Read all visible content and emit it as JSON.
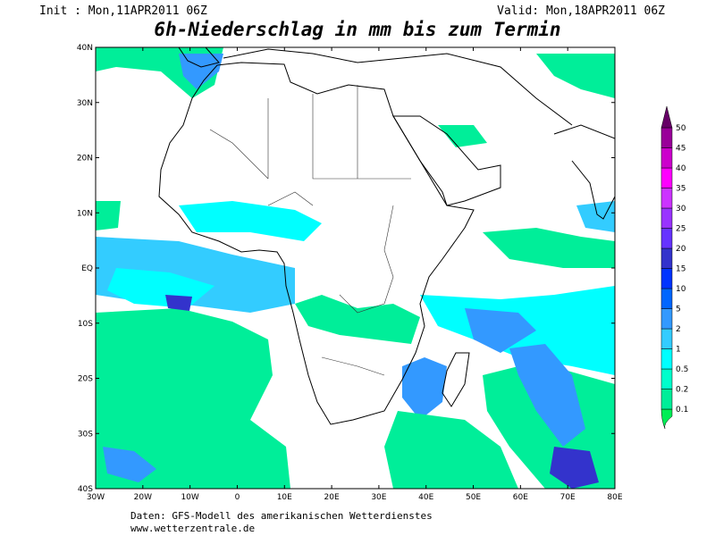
{
  "header": {
    "init": "Init : Mon,11APR2011 06Z",
    "valid": "Valid: Mon,18APR2011 06Z",
    "title": "6h-Niederschlag in mm bis zum Termin"
  },
  "map": {
    "lat_labels": [
      "40N",
      "30N",
      "20N",
      "10N",
      "EQ",
      "10S",
      "20S",
      "30S",
      "40S"
    ],
    "lon_labels": [
      "30W",
      "20W",
      "10W",
      "0",
      "10E",
      "20E",
      "30E",
      "40E",
      "50E",
      "60E",
      "70E",
      "80E"
    ]
  },
  "legend": {
    "labels": [
      "0.1",
      "0.2",
      "0.5",
      "1",
      "2",
      "5",
      "10",
      "15",
      "20",
      "25",
      "30",
      "35",
      "40",
      "45",
      "50"
    ],
    "colors": [
      "#00ee55",
      "#00ee99",
      "#00ffcc",
      "#00ffff",
      "#33ccff",
      "#3399ff",
      "#0066ff",
      "#0033ff",
      "#3333cc",
      "#6633ff",
      "#9933ff",
      "#cc33ff",
      "#ff00ff",
      "#cc00cc",
      "#990099",
      "#660066"
    ]
  },
  "footer": {
    "source": "Daten: GFS-Modell des amerikanischen Wetterdienstes",
    "site": "www.wetterzentrale.de"
  }
}
